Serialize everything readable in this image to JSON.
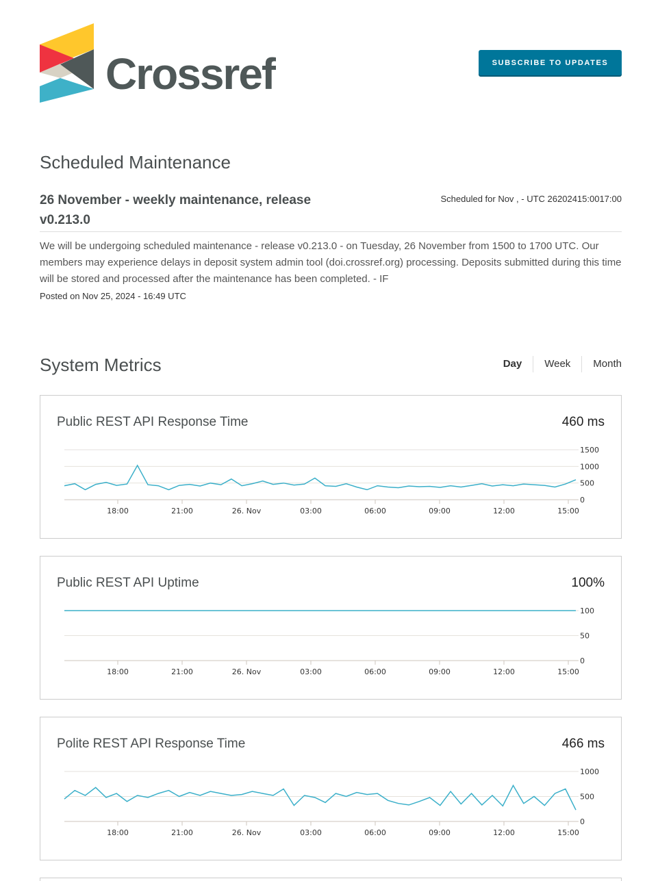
{
  "header": {
    "brand": "Crossref",
    "subscribe_label": "SUBSCRIBE TO UPDATES"
  },
  "maintenance": {
    "heading": "Scheduled Maintenance",
    "title": "26 November - weekly maintenance, release v0.213.0",
    "scheduled": "Scheduled for Nov , - UTC 26202415:0017:00",
    "body": "We will be undergoing scheduled maintenance - release v0.213.0 - on Tuesday, 26 November from 1500 to 1700 UTC. Our members may experience delays in deposit system admin tool (doi.crossref.org) processing. Deposits submitted during this time will be stored and processed after the maintenance has been completed. - IF",
    "posted": "Posted on Nov 25, 2024 - 16:49 UTC"
  },
  "metrics": {
    "heading": "System Metrics",
    "ranges": [
      "Day",
      "Week",
      "Month"
    ],
    "selected_range": "Day"
  },
  "colors": {
    "line": "#3aafc9",
    "button": "#00769a",
    "grid": "#e6e2dc"
  },
  "chart_data": [
    {
      "type": "line",
      "title": "Public REST API Response Time",
      "current": "460 ms",
      "xticks": [
        "18:00",
        "21:00",
        "26. Nov",
        "03:00",
        "06:00",
        "09:00",
        "12:00",
        "15:00"
      ],
      "yticks": [
        "0",
        "500",
        "1000",
        "1500"
      ],
      "ylim": [
        0,
        1500
      ],
      "values": [
        420,
        480,
        300,
        460,
        520,
        430,
        470,
        1030,
        450,
        420,
        300,
        430,
        460,
        410,
        500,
        450,
        620,
        420,
        480,
        560,
        460,
        500,
        440,
        470,
        650,
        420,
        400,
        480,
        380,
        300,
        420,
        380,
        360,
        410,
        390,
        400,
        370,
        420,
        380,
        430,
        480,
        410,
        450,
        420,
        470,
        450,
        430,
        380,
        470,
        600
      ]
    },
    {
      "type": "line",
      "title": "Public REST API Uptime",
      "current": "100%",
      "xticks": [
        "18:00",
        "21:00",
        "26. Nov",
        "03:00",
        "06:00",
        "09:00",
        "12:00",
        "15:00"
      ],
      "yticks": [
        "0",
        "50",
        "100"
      ],
      "ylim": [
        0,
        100
      ],
      "values": [
        100,
        100,
        100,
        100,
        100,
        100,
        100,
        100,
        100,
        100,
        100,
        100,
        100,
        100,
        100,
        100,
        100,
        100,
        100,
        100,
        100,
        100,
        100,
        100,
        100,
        100,
        100,
        100,
        100,
        100,
        100,
        100,
        100,
        100,
        100,
        100,
        100,
        100,
        100,
        100,
        100,
        100,
        100,
        100,
        100,
        100,
        100,
        100,
        100,
        100
      ]
    },
    {
      "type": "line",
      "title": "Polite REST API Response Time",
      "current": "466 ms",
      "xticks": [
        "18:00",
        "21:00",
        "26. Nov",
        "03:00",
        "06:00",
        "09:00",
        "12:00",
        "15:00"
      ],
      "yticks": [
        "0",
        "500",
        "1000"
      ],
      "ylim": [
        0,
        1000
      ],
      "values": [
        450,
        620,
        520,
        680,
        480,
        560,
        400,
        520,
        480,
        560,
        620,
        500,
        580,
        520,
        600,
        560,
        520,
        540,
        600,
        560,
        520,
        650,
        320,
        520,
        480,
        380,
        560,
        500,
        580,
        540,
        560,
        420,
        360,
        330,
        400,
        480,
        320,
        600,
        350,
        560,
        330,
        520,
        310,
        720,
        360,
        500,
        320,
        560,
        650,
        230
      ]
    }
  ]
}
